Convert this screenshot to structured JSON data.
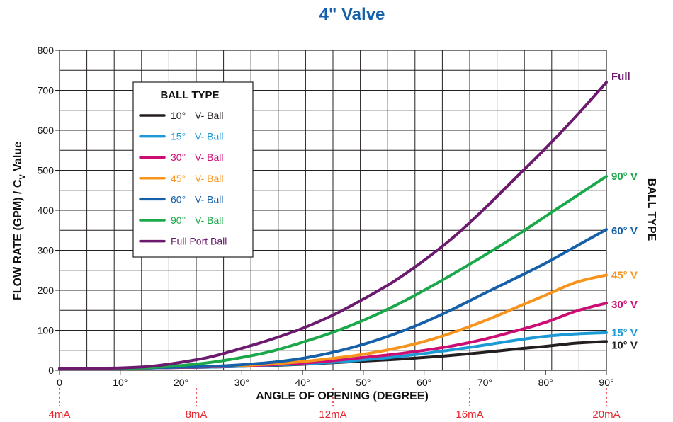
{
  "chart_data": {
    "type": "line",
    "title": "4\" Valve",
    "xlabel": "ANGLE OF OPENING (DEGREE)",
    "ylabel_main": "FLOW RATE (GPM) / C",
    "ylabel_sub": "V",
    "ylabel_tail": " Value",
    "right_label": "BALL TYPE",
    "xlim": [
      0,
      90
    ],
    "ylim": [
      0,
      800
    ],
    "x_ticks": [
      0,
      10,
      20,
      30,
      40,
      50,
      60,
      70,
      80,
      90
    ],
    "x_tick_labels": [
      "0",
      "10°",
      "20°",
      "30°",
      "40°",
      "50°",
      "60°",
      "70°",
      "80°",
      "90°"
    ],
    "y_ticks": [
      0,
      100,
      200,
      300,
      400,
      500,
      600,
      700,
      800
    ],
    "y_tick_labels": [
      "0",
      "100",
      "200",
      "300",
      "400",
      "500",
      "600",
      "700",
      "800"
    ],
    "grid": true,
    "ma_markers": [
      {
        "x": 0,
        "label": "4mA"
      },
      {
        "x": 22.5,
        "label": "8mA"
      },
      {
        "x": 45,
        "label": "12mA"
      },
      {
        "x": 67.5,
        "label": "16mA"
      },
      {
        "x": 90,
        "label": "20mA"
      }
    ],
    "ma_color": "#e8262d",
    "legend": {
      "title": "BALL TYPE",
      "placement": "top-left",
      "entries": [
        {
          "prefix": "10°",
          "suffix": "V- Ball",
          "color": "#231f20"
        },
        {
          "prefix": "15°",
          "suffix": "V- Ball",
          "color": "#1b9ad6"
        },
        {
          "prefix": "30°",
          "suffix": "V- Ball",
          "color": "#cc0e74"
        },
        {
          "prefix": "45°",
          "suffix": "V- Ball",
          "color": "#f7941d"
        },
        {
          "prefix": "60°",
          "suffix": "V- Ball",
          "color": "#1560a8"
        },
        {
          "prefix": "90°",
          "suffix": "V- Ball",
          "color": "#1ba84a"
        },
        {
          "prefix": "",
          "suffix": "Full Port Ball",
          "color": "#6b1a6e"
        }
      ]
    },
    "x": [
      0,
      5,
      10,
      15,
      20,
      25,
      30,
      35,
      40,
      45,
      50,
      55,
      60,
      65,
      70,
      75,
      80,
      85,
      90
    ],
    "series": [
      {
        "name": "10° V- Ball",
        "end_label": "10° V",
        "color": "#231f20",
        "values": [
          4,
          5,
          5,
          6,
          7,
          8,
          10,
          12,
          15,
          19,
          23,
          27,
          32,
          38,
          45,
          53,
          60,
          68,
          72
        ]
      },
      {
        "name": "15° V- Ball",
        "end_label": "15° V",
        "color": "#1b9ad6",
        "values": [
          4,
          5,
          5,
          6,
          7,
          8,
          10,
          13,
          16,
          20,
          26,
          33,
          42,
          52,
          63,
          75,
          85,
          91,
          94
        ]
      },
      {
        "name": "30° V- Ball",
        "end_label": "30° V",
        "color": "#cc0e74",
        "values": [
          4,
          5,
          5,
          6,
          7,
          9,
          11,
          14,
          18,
          24,
          32,
          40,
          50,
          62,
          78,
          98,
          120,
          148,
          168
        ]
      },
      {
        "name": "45° V- Ball",
        "end_label": "45° V",
        "color": "#f7941d",
        "values": [
          4,
          5,
          5,
          6,
          8,
          10,
          12,
          16,
          22,
          30,
          40,
          54,
          72,
          96,
          124,
          156,
          188,
          220,
          238
        ]
      },
      {
        "name": "60° V- Ball",
        "end_label": "60° V",
        "color": "#1560a8",
        "values": [
          4,
          5,
          5,
          6,
          8,
          10,
          14,
          20,
          30,
          45,
          65,
          90,
          120,
          155,
          193,
          230,
          268,
          310,
          352
        ]
      },
      {
        "name": "90° V- Ball",
        "end_label": "90° V",
        "color": "#1ba84a",
        "values": [
          4,
          5,
          5,
          7,
          12,
          20,
          32,
          48,
          70,
          95,
          125,
          160,
          200,
          243,
          288,
          335,
          385,
          435,
          485
        ]
      },
      {
        "name": "Full Port Ball",
        "end_label": "Full",
        "color": "#6b1a6e",
        "values": [
          4,
          5,
          6,
          10,
          20,
          34,
          55,
          78,
          105,
          138,
          178,
          222,
          275,
          335,
          405,
          480,
          555,
          635,
          720
        ]
      }
    ],
    "colors": {
      "title": "#1560a8",
      "grid": "#231f20",
      "legend_border": "#231f20"
    }
  }
}
